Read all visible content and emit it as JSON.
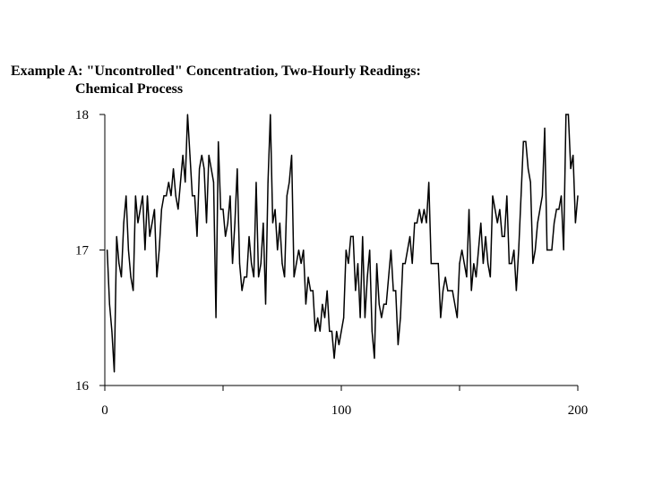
{
  "chart_data": {
    "type": "line",
    "title_line1": "Example A:  \"Uncontrolled\" Concentration, Two-Hourly Readings:",
    "title_line2": "Chemical Process",
    "xlabel": "",
    "ylabel": "",
    "xlim": [
      0,
      200
    ],
    "ylim": [
      16,
      18
    ],
    "x_ticks": [
      0,
      100,
      200
    ],
    "y_ticks": [
      16,
      17,
      18
    ],
    "x_tick_labels": [
      "0",
      "100",
      "200"
    ],
    "y_tick_labels": [
      "16",
      "17",
      "18"
    ],
    "grid": false,
    "legend": "none",
    "line_color": "#000000",
    "series": [
      {
        "x_start": 1,
        "x_step": 1,
        "values": [
          17.0,
          16.6,
          16.4,
          16.1,
          17.1,
          16.9,
          16.8,
          17.2,
          17.4,
          17.0,
          16.8,
          16.7,
          17.4,
          17.2,
          17.3,
          17.4,
          17.0,
          17.4,
          17.1,
          17.2,
          17.3,
          16.8,
          17.0,
          17.3,
          17.4,
          17.4,
          17.5,
          17.4,
          17.6,
          17.4,
          17.3,
          17.5,
          17.7,
          17.5,
          18.0,
          17.7,
          17.4,
          17.4,
          17.1,
          17.6,
          17.7,
          17.6,
          17.2,
          17.7,
          17.6,
          17.5,
          16.5,
          17.8,
          17.3,
          17.3,
          17.1,
          17.2,
          17.4,
          16.9,
          17.2,
          17.6,
          16.9,
          16.7,
          16.8,
          16.8,
          17.1,
          16.9,
          16.8,
          17.5,
          16.8,
          16.9,
          17.2,
          16.6,
          17.5,
          18.0,
          17.2,
          17.3,
          17.0,
          17.2,
          16.9,
          16.8,
          17.4,
          17.5,
          17.7,
          16.8,
          16.9,
          17.0,
          16.9,
          17.0,
          16.6,
          16.8,
          16.7,
          16.7,
          16.4,
          16.5,
          16.4,
          16.6,
          16.5,
          16.7,
          16.4,
          16.4,
          16.2,
          16.4,
          16.3,
          16.4,
          16.5,
          17.0,
          16.9,
          17.1,
          17.1,
          16.7,
          16.9,
          16.5,
          17.1,
          16.5,
          16.8,
          17.0,
          16.4,
          16.2,
          16.9,
          16.6,
          16.5,
          16.6,
          16.6,
          16.8,
          17.0,
          16.7,
          16.7,
          16.3,
          16.5,
          16.9,
          16.9,
          17.0,
          17.1,
          16.9,
          17.2,
          17.2,
          17.3,
          17.2,
          17.3,
          17.2,
          17.5,
          16.9,
          16.9,
          16.9,
          16.9,
          16.5,
          16.7,
          16.8,
          16.7,
          16.7,
          16.7,
          16.6,
          16.5,
          16.9,
          17.0,
          16.9,
          16.8,
          17.3,
          16.7,
          16.9,
          16.8,
          17.0,
          17.2,
          16.9,
          17.1,
          16.9,
          16.8,
          17.4,
          17.3,
          17.2,
          17.3,
          17.1,
          17.1,
          17.4,
          16.9,
          16.9,
          17.0,
          16.7,
          17.0,
          17.4,
          17.8,
          17.8,
          17.6,
          17.5,
          16.9,
          17.0,
          17.2,
          17.3,
          17.4,
          17.9,
          17.0,
          17.0,
          17.0,
          17.2,
          17.3,
          17.3,
          17.4,
          17.0,
          18.0,
          18.0,
          17.6,
          17.7,
          17.2,
          17.4
        ]
      }
    ]
  }
}
